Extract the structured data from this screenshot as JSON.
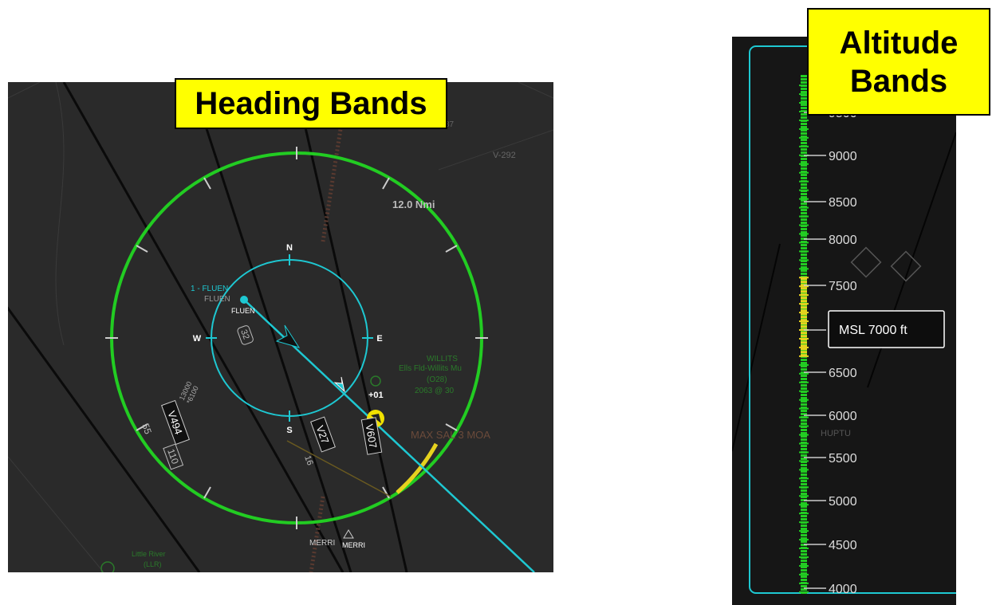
{
  "heading_display": {
    "callout": "Heading Bands",
    "range_label": "12.0 Nmi",
    "compass": {
      "north": "N",
      "south": "S",
      "east": "E",
      "west": "W"
    },
    "waypoint_label": "1 - FLUEN",
    "waypoint_ident": "FLUEN",
    "waypoint_map_label": "FLUEN",
    "ownship_altitude_delta": "+01",
    "airways": [
      "V494",
      "V27",
      "V607"
    ],
    "map_labels": {
      "airport_name": "WILLITS",
      "airport_detail": "Ells Fld-Willits Mu",
      "airport_id": "(O28)",
      "airport_elev": "2063 @ 30",
      "moa": "MAX SAL 3 MOA",
      "merri_left": "MERRI",
      "merri_right": "MERRI",
      "little_river": "Little River",
      "little_river_id": "(LLR)",
      "alt_13000": "13000",
      "alt_6100": "*6100",
      "num_55": "55",
      "num_110": "110",
      "num_16": "16",
      "num_32": "32",
      "num_87": "87",
      "v_route_right": "V-292"
    },
    "band_colors": {
      "clear": "#22cc22",
      "caution": "#e6d21e",
      "route": "#1ec8d2"
    }
  },
  "altitude_display": {
    "callout": "Altitude Bands",
    "readout": "MSL 7000 ft",
    "ticks": [
      "9000",
      "8500",
      "8000",
      "7500",
      "6500",
      "6000",
      "5500",
      "5000",
      "4500"
    ],
    "partial_top": "9500",
    "partial_bottom": "4000",
    "waypoint": "HUPTU",
    "caution_band_range_ft": [
      6700,
      7600
    ],
    "band_colors": {
      "clear": "#22cc22",
      "caution": "#e6d21e",
      "frame": "#1ec8d2"
    }
  }
}
